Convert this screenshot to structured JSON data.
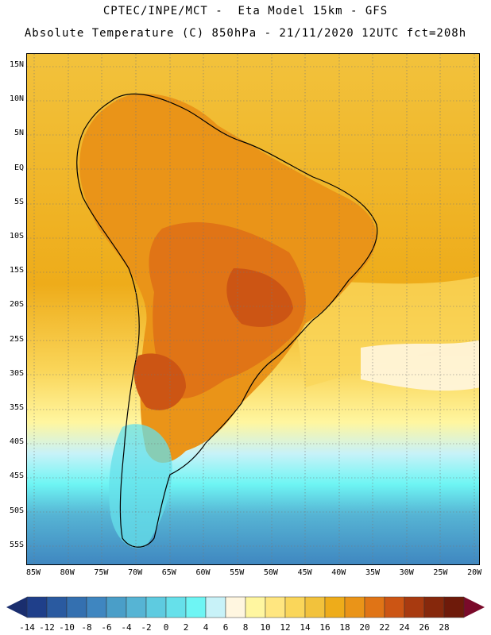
{
  "header": {
    "line1": "CPTEC/INPE/MCT -  Eta Model 15km - GFS",
    "line2": "Absolute Temperature (C) 850hPa - 21/11/2020 12UTC fct=208h"
  },
  "map": {
    "lat_labels": [
      "15N",
      "10N",
      "5N",
      "EQ",
      "5S",
      "10S",
      "15S",
      "20S",
      "25S",
      "30S",
      "35S",
      "40S",
      "45S",
      "50S",
      "55S"
    ],
    "lon_labels": [
      "85W",
      "80W",
      "75W",
      "70W",
      "65W",
      "60W",
      "55W",
      "50W",
      "45W",
      "40W",
      "35W",
      "30W",
      "25W",
      "20W"
    ]
  },
  "colorbar": {
    "labels": [
      "-14",
      "-12",
      "-10",
      "-8",
      "-6",
      "-4",
      "-2",
      "0",
      "2",
      "4",
      "6",
      "8",
      "10",
      "12",
      "14",
      "16",
      "18",
      "20",
      "22",
      "24",
      "26",
      "28"
    ],
    "colors": [
      "#1f3f8a",
      "#2a5aa0",
      "#3470b0",
      "#3f86c0",
      "#4a9ec8",
      "#56b4d4",
      "#5ecbe0",
      "#66e0ea",
      "#6ef5f4",
      "#c8f2f8",
      "#fff6e0",
      "#fff6a0",
      "#ffe680",
      "#fad65a",
      "#f2c23c",
      "#eeac1a",
      "#ea9418",
      "#e07416",
      "#cc5514",
      "#a83a10",
      "#86280c",
      "#6e1a0a"
    ],
    "left_arrow_color": "#1a2e6e",
    "right_arrow_color": "#7a0a2a"
  }
}
